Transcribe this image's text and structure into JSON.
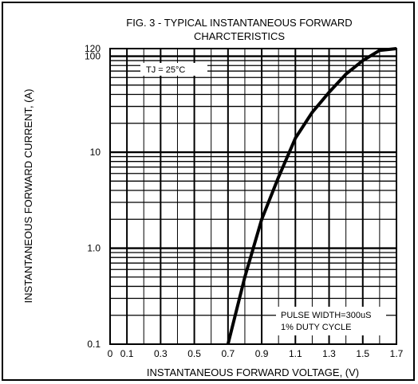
{
  "chart_data": {
    "type": "line",
    "title_line1": "FIG. 3 - TYPICAL INSTANTANEOUS FORWARD",
    "title_line2": "CHARCTERISTICS",
    "xlabel": "INSTANTANEOUS FORWARD VOLTAGE, (V)",
    "ylabel": "INSTANTANEOUS FORWARD CURRENT, (A)",
    "xlim": [
      0,
      1.7
    ],
    "ylim": [
      0.1,
      120
    ],
    "y_scale": "log",
    "grid": true,
    "x_ticks": [
      "0",
      "0.1",
      "0.3",
      "0.5",
      "0.7",
      "0.9",
      "1.1",
      "1.3",
      "1.5",
      "1.7"
    ],
    "y_ticks": [
      "120",
      "100",
      "10",
      "1.0",
      "0.1"
    ],
    "annotations": {
      "temperature": "TJ = 25°C",
      "pulse_line1": "PULSE WIDTH=300uS",
      "pulse_line2": "1% DUTY CYCLE"
    },
    "series": [
      {
        "x": [
          0.7,
          0.8,
          0.9,
          1.0,
          1.1,
          1.2,
          1.3,
          1.4,
          1.5,
          1.6,
          1.7
        ],
        "y": [
          0.1,
          0.5,
          2.0,
          5.5,
          14,
          26,
          42,
          65,
          90,
          115,
          140
        ]
      }
    ]
  }
}
